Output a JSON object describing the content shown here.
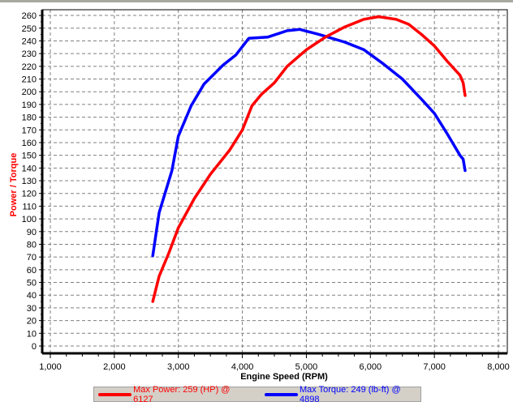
{
  "chart_data": {
    "type": "line",
    "title": "",
    "xlabel": "Engine Speed (RPM)",
    "ylabel": "Power / Torque",
    "xlim": [
      1000,
      8000
    ],
    "ylim": [
      0,
      260
    ],
    "x_ticks": [
      "1,000",
      "2,000",
      "3,000",
      "4,000",
      "5,000",
      "6,000",
      "7,000",
      "8,000"
    ],
    "y_ticks": [
      "0",
      "10",
      "20",
      "30",
      "40",
      "50",
      "60",
      "70",
      "80",
      "90",
      "100",
      "110",
      "120",
      "130",
      "140",
      "150",
      "160",
      "170",
      "180",
      "190",
      "200",
      "210",
      "220",
      "230",
      "240",
      "250",
      "260"
    ],
    "grid": true,
    "legend_position": "bottom",
    "series": [
      {
        "name": "Max Power: 259 (HP) @ 6127",
        "color": "#ff0000",
        "x": [
          2600,
          2700,
          2850,
          3000,
          3250,
          3500,
          3800,
          4000,
          4150,
          4300,
          4500,
          4700,
          5000,
          5300,
          5600,
          5900,
          6127,
          6400,
          6600,
          6800,
          7000,
          7200,
          7400,
          7450,
          7480
        ],
        "values": [
          35,
          55,
          73,
          93,
          116,
          135,
          154,
          170,
          189,
          198,
          207,
          220,
          233,
          243,
          251,
          257,
          259,
          257,
          253,
          245,
          236,
          224,
          213,
          207,
          197
        ]
      },
      {
        "name": "Max Torque: 249 (lb-ft) @ 4898",
        "color": "#0000ff",
        "x": [
          2600,
          2700,
          2900,
          3000,
          3200,
          3400,
          3700,
          3900,
          4100,
          4400,
          4700,
          4898,
          5200,
          5600,
          5900,
          6200,
          6500,
          6800,
          7000,
          7200,
          7400,
          7450,
          7480
        ],
        "values": [
          71,
          105,
          138,
          165,
          189,
          206,
          221,
          229,
          242,
          243,
          248,
          249,
          245,
          239,
          233,
          222,
          210,
          194,
          183,
          167,
          150,
          147,
          138
        ]
      }
    ]
  },
  "axis": {
    "ylabel": "Power / Torque",
    "xlabel": "Engine Speed (RPM)"
  },
  "legend": {
    "power": {
      "label": "Max Power: 259 (HP) @ 6127",
      "color": "#ff0000"
    },
    "torque": {
      "label": "Max Torque: 249 (lb-ft) @ 4898",
      "color": "#0000ff"
    }
  }
}
